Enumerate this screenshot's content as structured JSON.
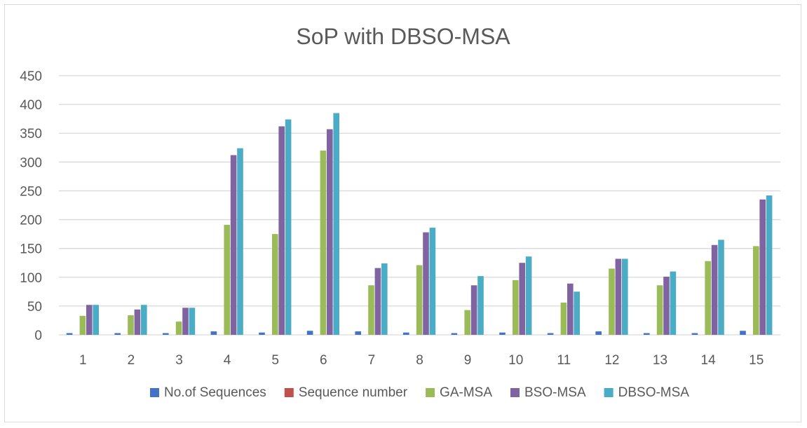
{
  "chart_data": {
    "type": "bar",
    "title": "SoP with DBSO-MSA",
    "xlabel": "",
    "ylabel": "",
    "ylim": [
      0,
      450
    ],
    "yticks": [
      0,
      50,
      100,
      150,
      200,
      250,
      300,
      350,
      400,
      450
    ],
    "grid": true,
    "legend_position": "bottom",
    "categories": [
      "1",
      "2",
      "3",
      "4",
      "5",
      "6",
      "7",
      "8",
      "9",
      "10",
      "11",
      "12",
      "13",
      "14",
      "15"
    ],
    "series": [
      {
        "name": "No.of Sequences",
        "color": "#4472c4",
        "values": [
          3,
          3,
          3,
          6,
          4,
          7,
          6,
          4,
          3,
          4,
          3,
          6,
          3,
          3,
          7
        ]
      },
      {
        "name": "Sequence number",
        "color": "#c0504d",
        "values": [
          0,
          0,
          0,
          0,
          0,
          0,
          0,
          0,
          0,
          0,
          0,
          0,
          0,
          0,
          0
        ]
      },
      {
        "name": "GA-MSA",
        "color": "#9bbb59",
        "values": [
          33,
          34,
          23,
          191,
          175,
          320,
          86,
          121,
          43,
          95,
          56,
          115,
          86,
          128,
          154
        ]
      },
      {
        "name": "BSO-MSA",
        "color": "#8064a2",
        "values": [
          52,
          44,
          47,
          312,
          362,
          357,
          116,
          178,
          86,
          125,
          89,
          132,
          101,
          156,
          235
        ]
      },
      {
        "name": "DBSO-MSA",
        "color": "#4bacc6",
        "values": [
          52,
          52,
          47,
          324,
          374,
          385,
          124,
          186,
          102,
          136,
          75,
          132,
          110,
          165,
          242
        ]
      }
    ]
  }
}
